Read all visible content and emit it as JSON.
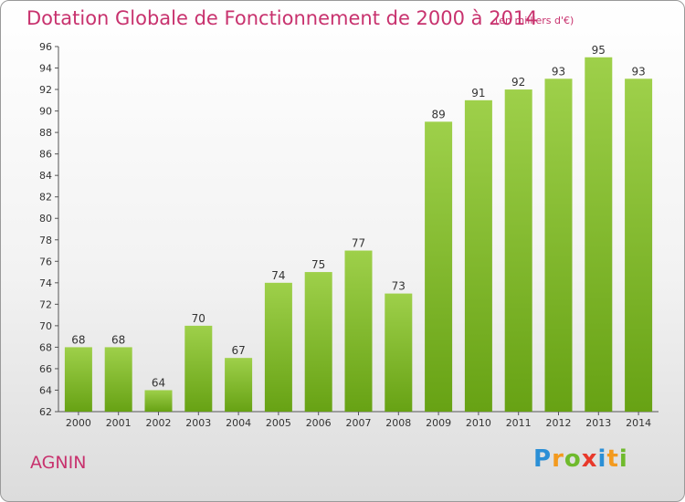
{
  "chart_data": {
    "type": "bar",
    "title": "Dotation Globale de Fonctionnement de 2000 à 2014",
    "subtitle": "(en milliers d'€)",
    "categories": [
      "2000",
      "2001",
      "2002",
      "2003",
      "2004",
      "2005",
      "2006",
      "2007",
      "2008",
      "2009",
      "2010",
      "2011",
      "2012",
      "2013",
      "2014"
    ],
    "values": [
      68,
      68,
      64,
      70,
      67,
      74,
      75,
      77,
      73,
      89,
      91,
      92,
      93,
      95,
      93
    ],
    "ylim": [
      62,
      96
    ],
    "yticks": [
      62,
      64,
      66,
      68,
      70,
      72,
      74,
      76,
      78,
      80,
      82,
      84,
      86,
      88,
      90,
      92,
      94,
      96
    ],
    "grid": false,
    "legend": "none",
    "colors": {
      "bar_top": "#9ed04a",
      "bar_bottom": "#67a214",
      "title": "#c8326e"
    }
  },
  "footer": {
    "commune": "AGNIN"
  },
  "logo": {
    "letters": [
      "P",
      "r",
      "o",
      "x",
      "i",
      "t",
      "i"
    ],
    "colors": [
      "#2b8fd6",
      "#f39a1e",
      "#6fba2c",
      "#e8392b",
      "#2b8fd6",
      "#f39a1e",
      "#6fba2c"
    ]
  }
}
